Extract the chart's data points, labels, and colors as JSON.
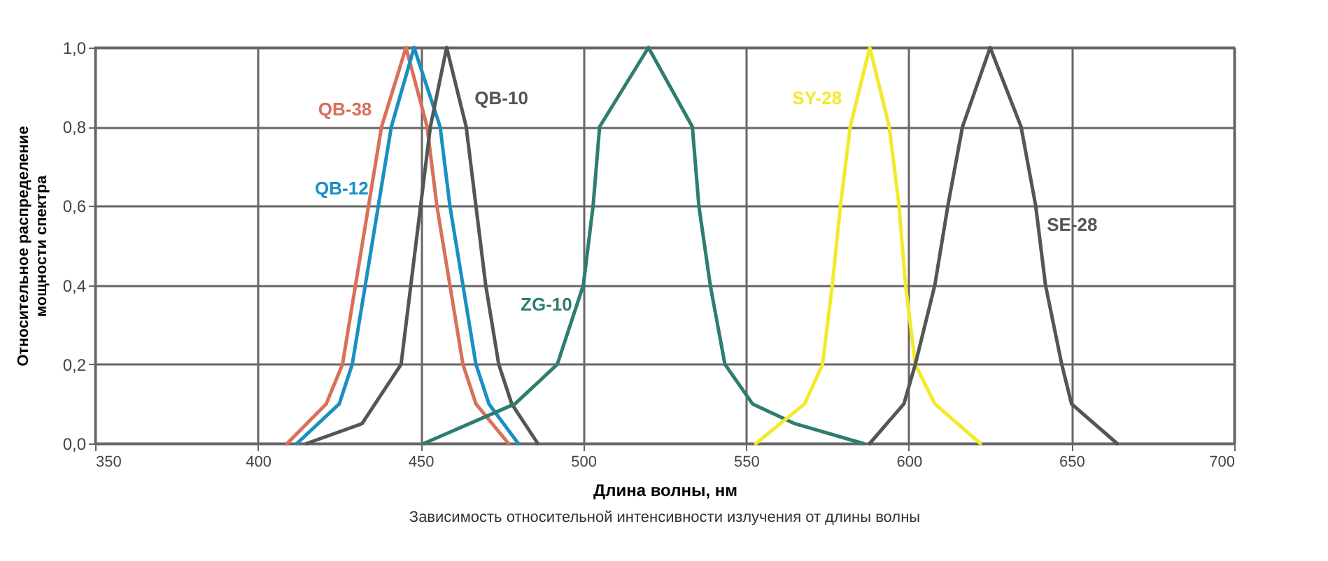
{
  "chart_data": {
    "type": "line",
    "xlabel": "Длина волны, нм",
    "ylabel": "Относительное распределение мощности спектра",
    "annotations": [
      "Зависимость относительной интенсивности излучения от длины волны"
    ],
    "xlim": [
      350,
      700
    ],
    "xticks": [
      350,
      400,
      450,
      500,
      550,
      600,
      650,
      700
    ],
    "ylim": [
      0,
      1
    ],
    "yticks": [
      {
        "value": 0,
        "label": "0,0"
      },
      {
        "value": 0.2,
        "label": "0,2"
      },
      {
        "value": 0.4,
        "label": "0,4"
      },
      {
        "value": 0.6,
        "label": "0,6"
      },
      {
        "value": 0.8,
        "label": "0,8"
      },
      {
        "value": 1,
        "label": "1,0"
      }
    ],
    "grid": true,
    "legend": false,
    "marker": "none",
    "line_style": "solid",
    "series": [
      {
        "name": "QB-38",
        "color": "#d9705a",
        "x": [
          409,
          421,
          426,
          430,
          434,
          438,
          445.5,
          452,
          455,
          459,
          463,
          467,
          477
        ],
        "values": [
          0,
          0.1,
          0.2,
          0.4,
          0.6,
          0.8,
          1,
          0.8,
          0.6,
          0.4,
          0.2,
          0.1,
          0
        ]
      },
      {
        "name": "QB-12",
        "color": "#1a8fc4",
        "x": [
          412,
          425,
          429,
          433,
          437,
          441,
          448,
          456,
          459,
          463,
          467,
          471,
          480
        ],
        "values": [
          0,
          0.1,
          0.2,
          0.4,
          0.6,
          0.8,
          1,
          0.8,
          0.6,
          0.4,
          0.2,
          0.1,
          0
        ]
      },
      {
        "name": "QB-10",
        "color": "#555555",
        "x": [
          415,
          432,
          444,
          447,
          450,
          453,
          458,
          464,
          467,
          470,
          474,
          478,
          486
        ],
        "values": [
          0,
          0.05,
          0.2,
          0.4,
          0.6,
          0.8,
          1,
          0.8,
          0.6,
          0.4,
          0.2,
          0.1,
          0
        ]
      },
      {
        "name": "ZG-10",
        "color": "#2e7d70",
        "x": [
          451,
          479,
          492,
          500,
          503,
          505,
          520,
          533.5,
          535.5,
          539,
          543.5,
          552,
          565,
          586
        ],
        "values": [
          0,
          0.1,
          0.2,
          0.4,
          0.6,
          0.8,
          1,
          0.8,
          0.6,
          0.4,
          0.2,
          0.1,
          0.05,
          0
        ]
      },
      {
        "name": "SY-28",
        "color": "#f2ea2a",
        "x": [
          553,
          568,
          573.5,
          576.5,
          579,
          582,
          588,
          594,
          597,
          599,
          602,
          608,
          622
        ],
        "values": [
          0,
          0.1,
          0.2,
          0.4,
          0.6,
          0.8,
          1,
          0.8,
          0.6,
          0.4,
          0.2,
          0.1,
          0
        ]
      },
      {
        "name": "SE-28",
        "color": "#555555",
        "x": [
          588,
          598.5,
          602,
          608,
          612,
          616.5,
          625,
          634.5,
          639,
          642,
          647,
          650,
          664
        ],
        "values": [
          0,
          0.1,
          0.2,
          0.4,
          0.6,
          0.8,
          1,
          0.8,
          0.6,
          0.4,
          0.2,
          0.1,
          0
        ]
      }
    ]
  }
}
